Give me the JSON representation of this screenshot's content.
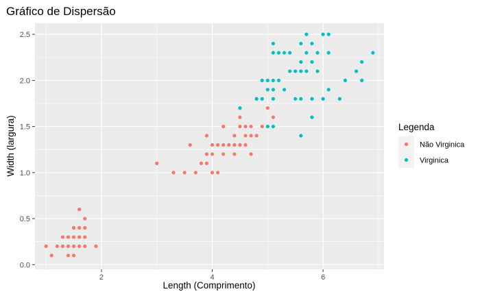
{
  "chart_data": {
    "type": "scatter",
    "title": "Gráfico de Dispersão",
    "xlabel": "Length (Comprimento)",
    "ylabel": "Width (largura)",
    "xlim": [
      0.8,
      7.1
    ],
    "ylim": [
      -0.05,
      2.62
    ],
    "xticks": [
      2,
      4,
      6
    ],
    "xtick_labels": [
      "2",
      "4",
      "6"
    ],
    "yticks": [
      0,
      0.5,
      1,
      1.5,
      2,
      2.5
    ],
    "ytick_labels": [
      "0.0",
      "0.5",
      "1.0",
      "1.5",
      "2.0",
      "2.5"
    ],
    "grid": true,
    "legend": {
      "title": "Legenda",
      "position": "right"
    },
    "series": [
      {
        "name": "Não Virginica",
        "color": "#F8766D",
        "points": [
          [
            1.0,
            0.2
          ],
          [
            1.1,
            0.1
          ],
          [
            1.2,
            0.2
          ],
          [
            1.3,
            0.2
          ],
          [
            1.3,
            0.3
          ],
          [
            1.4,
            0.2
          ],
          [
            1.4,
            0.3
          ],
          [
            1.4,
            0.1
          ],
          [
            1.5,
            0.2
          ],
          [
            1.5,
            0.4
          ],
          [
            1.5,
            0.1
          ],
          [
            1.5,
            0.3
          ],
          [
            1.6,
            0.2
          ],
          [
            1.6,
            0.4
          ],
          [
            1.6,
            0.6
          ],
          [
            1.6,
            0.3
          ],
          [
            1.7,
            0.2
          ],
          [
            1.7,
            0.4
          ],
          [
            1.7,
            0.3
          ],
          [
            1.7,
            0.5
          ],
          [
            1.9,
            0.2
          ],
          [
            3.0,
            1.1
          ],
          [
            3.3,
            1.0
          ],
          [
            3.5,
            1.0
          ],
          [
            3.6,
            1.3
          ],
          [
            3.7,
            1.0
          ],
          [
            3.8,
            1.1
          ],
          [
            3.9,
            1.1
          ],
          [
            3.9,
            1.2
          ],
          [
            3.9,
            1.4
          ],
          [
            4.0,
            1.0
          ],
          [
            4.0,
            1.2
          ],
          [
            4.0,
            1.3
          ],
          [
            4.1,
            1.0
          ],
          [
            4.1,
            1.3
          ],
          [
            4.2,
            1.2
          ],
          [
            4.2,
            1.3
          ],
          [
            4.2,
            1.5
          ],
          [
            4.3,
            1.3
          ],
          [
            4.4,
            1.2
          ],
          [
            4.4,
            1.3
          ],
          [
            4.4,
            1.4
          ],
          [
            4.5,
            1.3
          ],
          [
            4.5,
            1.5
          ],
          [
            4.6,
            1.3
          ],
          [
            4.6,
            1.4
          ],
          [
            4.6,
            1.5
          ],
          [
            4.7,
            1.2
          ],
          [
            4.7,
            1.4
          ],
          [
            4.7,
            1.5
          ],
          [
            4.8,
            1.4
          ],
          [
            4.8,
            1.8
          ],
          [
            4.9,
            1.5
          ],
          [
            5.0,
            1.7
          ],
          [
            5.1,
            1.6
          ],
          [
            4.5,
            1.6
          ],
          [
            4.5,
            1.7
          ]
        ]
      },
      {
        "name": "Virginica",
        "color": "#00BFC4",
        "points": [
          [
            4.5,
            1.7
          ],
          [
            4.8,
            1.8
          ],
          [
            4.9,
            1.8
          ],
          [
            4.9,
            2.0
          ],
          [
            5.0,
            1.5
          ],
          [
            5.0,
            1.9
          ],
          [
            5.0,
            2.0
          ],
          [
            5.1,
            1.5
          ],
          [
            5.1,
            1.8
          ],
          [
            5.1,
            1.9
          ],
          [
            5.1,
            2.0
          ],
          [
            5.1,
            2.3
          ],
          [
            5.1,
            2.4
          ],
          [
            5.2,
            2.0
          ],
          [
            5.2,
            2.3
          ],
          [
            5.3,
            1.9
          ],
          [
            5.3,
            2.3
          ],
          [
            5.4,
            2.1
          ],
          [
            5.4,
            2.3
          ],
          [
            5.5,
            1.8
          ],
          [
            5.5,
            2.1
          ],
          [
            5.6,
            1.4
          ],
          [
            5.6,
            1.8
          ],
          [
            5.6,
            2.1
          ],
          [
            5.6,
            2.2
          ],
          [
            5.6,
            2.4
          ],
          [
            5.7,
            2.1
          ],
          [
            5.7,
            2.3
          ],
          [
            5.7,
            2.5
          ],
          [
            5.8,
            1.6
          ],
          [
            5.8,
            1.8
          ],
          [
            5.8,
            2.2
          ],
          [
            5.8,
            2.4
          ],
          [
            5.9,
            2.1
          ],
          [
            5.9,
            2.3
          ],
          [
            6.0,
            1.8
          ],
          [
            6.0,
            2.5
          ],
          [
            6.1,
            1.9
          ],
          [
            6.1,
            2.3
          ],
          [
            6.1,
            2.5
          ],
          [
            6.3,
            1.8
          ],
          [
            6.4,
            2.0
          ],
          [
            6.6,
            2.1
          ],
          [
            6.7,
            2.0
          ],
          [
            6.7,
            2.2
          ],
          [
            6.9,
            2.3
          ]
        ]
      }
    ]
  }
}
